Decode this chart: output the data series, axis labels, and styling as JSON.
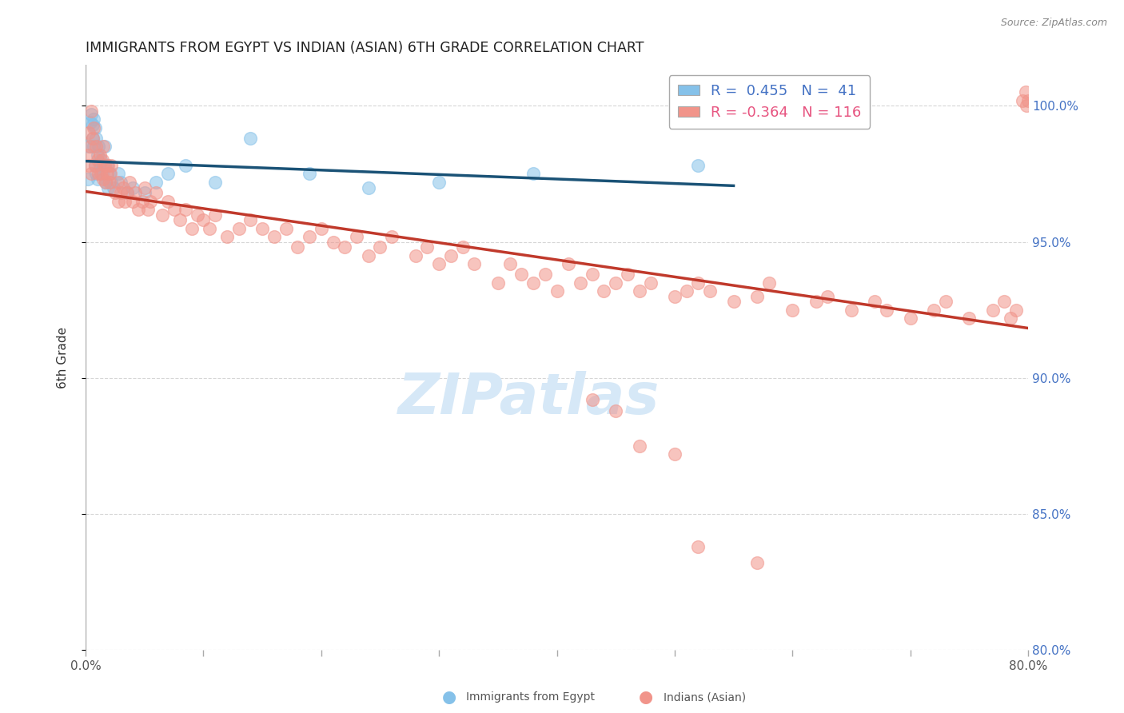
{
  "title": "IMMIGRANTS FROM EGYPT VS INDIAN (ASIAN) 6TH GRADE CORRELATION CHART",
  "source": "Source: ZipAtlas.com",
  "ylabel": "6th Grade",
  "xlim": [
    0.0,
    80.0
  ],
  "ylim": [
    80.0,
    101.5
  ],
  "yticks": [
    80.0,
    85.0,
    90.0,
    95.0,
    100.0
  ],
  "blue_color": "#85c1e9",
  "pink_color": "#f1948a",
  "blue_line_color": "#1a5276",
  "pink_line_color": "#c0392b",
  "watermark_text": "ZIPatlas",
  "watermark_color": "#d6e8f7",
  "background_color": "#ffffff",
  "grid_color": "#cccccc",
  "right_axis_color": "#4472c4",
  "legend_blue_color": "#4472c4",
  "legend_pink_color": "#e75480",
  "bottom_legend_blue_color": "#85c1e9",
  "bottom_legend_pink_color": "#f1948a",
  "blue_x": [
    0.2,
    0.3,
    0.4,
    0.5,
    0.6,
    0.6,
    0.7,
    0.7,
    0.8,
    0.8,
    0.9,
    0.9,
    1.0,
    1.0,
    1.1,
    1.2,
    1.3,
    1.4,
    1.5,
    1.6,
    1.7,
    1.8,
    1.9,
    2.0,
    2.2,
    2.4,
    2.8,
    3.0,
    3.5,
    4.0,
    5.0,
    6.0,
    7.0,
    8.5,
    11.0,
    14.0,
    19.0,
    24.0,
    30.0,
    38.0,
    52.0
  ],
  "blue_y": [
    97.3,
    98.5,
    99.4,
    99.7,
    99.3,
    98.8,
    99.5,
    98.5,
    99.2,
    97.8,
    98.8,
    97.5,
    98.2,
    97.3,
    98.5,
    97.8,
    98.0,
    97.5,
    97.8,
    98.5,
    97.2,
    97.8,
    97.0,
    97.5,
    97.2,
    97.0,
    97.5,
    97.2,
    96.8,
    97.0,
    96.8,
    97.2,
    97.5,
    97.8,
    97.2,
    98.8,
    97.5,
    97.0,
    97.2,
    97.5,
    97.8
  ],
  "pink_x": [
    0.2,
    0.3,
    0.3,
    0.4,
    0.5,
    0.5,
    0.6,
    0.7,
    0.8,
    0.9,
    1.0,
    1.1,
    1.2,
    1.3,
    1.4,
    1.5,
    1.5,
    1.6,
    1.7,
    1.8,
    1.9,
    2.0,
    2.1,
    2.2,
    2.5,
    2.7,
    2.8,
    3.0,
    3.2,
    3.3,
    3.5,
    3.7,
    4.0,
    4.2,
    4.5,
    4.8,
    5.0,
    5.3,
    5.5,
    6.0,
    6.5,
    7.0,
    7.5,
    8.0,
    8.5,
    9.0,
    9.5,
    10.0,
    10.5,
    11.0,
    12.0,
    13.0,
    14.0,
    15.0,
    16.0,
    17.0,
    18.0,
    19.0,
    20.0,
    21.0,
    22.0,
    23.0,
    24.0,
    25.0,
    26.0,
    28.0,
    29.0,
    30.0,
    31.0,
    32.0,
    33.0,
    35.0,
    36.0,
    37.0,
    38.0,
    39.0,
    40.0,
    41.0,
    42.0,
    43.0,
    44.0,
    45.0,
    46.0,
    47.0,
    48.0,
    50.0,
    51.0,
    52.0,
    53.0,
    55.0,
    57.0,
    58.0,
    60.0,
    62.0,
    63.0,
    65.0,
    67.0,
    68.0,
    70.0,
    72.0,
    73.0,
    75.0,
    77.0,
    78.0,
    78.5,
    79.0,
    79.5,
    79.8,
    79.9,
    80.0,
    43.0,
    45.0,
    47.0,
    50.0,
    52.0,
    57.0
  ],
  "pink_y": [
    98.2,
    97.8,
    99.0,
    98.5,
    99.8,
    97.5,
    98.8,
    99.2,
    97.8,
    98.5,
    98.0,
    97.5,
    98.2,
    97.5,
    98.0,
    97.3,
    98.5,
    97.8,
    97.2,
    97.5,
    97.8,
    97.2,
    97.5,
    97.8,
    96.8,
    97.2,
    96.5,
    96.8,
    97.0,
    96.5,
    96.8,
    97.2,
    96.5,
    96.8,
    96.2,
    96.5,
    97.0,
    96.2,
    96.5,
    96.8,
    96.0,
    96.5,
    96.2,
    95.8,
    96.2,
    95.5,
    96.0,
    95.8,
    95.5,
    96.0,
    95.2,
    95.5,
    95.8,
    95.5,
    95.2,
    95.5,
    94.8,
    95.2,
    95.5,
    95.0,
    94.8,
    95.2,
    94.5,
    94.8,
    95.2,
    94.5,
    94.8,
    94.2,
    94.5,
    94.8,
    94.2,
    93.5,
    94.2,
    93.8,
    93.5,
    93.8,
    93.2,
    94.2,
    93.5,
    93.8,
    93.2,
    93.5,
    93.8,
    93.2,
    93.5,
    93.0,
    93.2,
    93.5,
    93.2,
    92.8,
    93.0,
    93.5,
    92.5,
    92.8,
    93.0,
    92.5,
    92.8,
    92.5,
    92.2,
    92.5,
    92.8,
    92.2,
    92.5,
    92.8,
    92.2,
    92.5,
    100.2,
    100.5,
    100.0,
    100.2,
    89.2,
    88.8,
    87.5,
    87.2,
    83.8,
    83.2
  ]
}
